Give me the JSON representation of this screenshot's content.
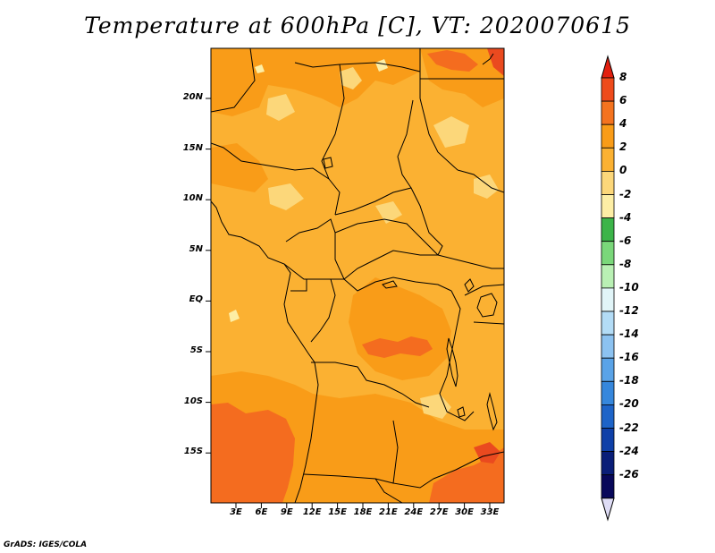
{
  "title": "Temperature at 600hPa [C], VT: 2020070615",
  "credit": "GrADS: IGES/COLA",
  "map": {
    "lat_labels": [
      "20N",
      "15N",
      "10N",
      "5N",
      "EQ",
      "5S",
      "10S",
      "15S"
    ],
    "lon_labels": [
      "3E",
      "6E",
      "9E",
      "12E",
      "15E",
      "18E",
      "21E",
      "24E",
      "27E",
      "30E",
      "33E"
    ],
    "fill_colors": {
      "dominant": "#fbb132",
      "warm": "#f99c18",
      "hot": "#f46c1f",
      "hottest": "#ea4a1f",
      "cool": "#fcd77a",
      "coolest": "#fdeea5"
    }
  },
  "colorbar": {
    "labels": [
      "8",
      "6",
      "4",
      "2",
      "0",
      "-2",
      "-4",
      "-6",
      "-8",
      "-10",
      "-12",
      "-14",
      "-16",
      "-18",
      "-20",
      "-22",
      "-24",
      "-26"
    ],
    "colors": [
      "#e21f0f",
      "#ee4b1c",
      "#f4731f",
      "#f99c18",
      "#fbb132",
      "#fcd77a",
      "#fdeea5",
      "#3cb449",
      "#7ad77a",
      "#b9f0b4",
      "#e1f5f8",
      "#b3dcf6",
      "#8cc2f0",
      "#5aa3e7",
      "#3687dc",
      "#1e64c8",
      "#0f40a8",
      "#0a1e78",
      "#08085a"
    ],
    "arrow_top_color": "#e21f0f",
    "arrow_bottom_color": "#dedcf5"
  }
}
